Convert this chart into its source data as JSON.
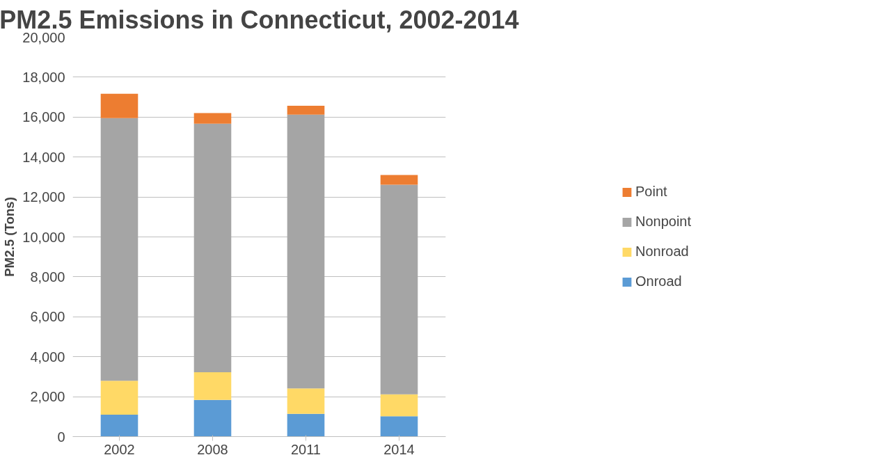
{
  "chart_data": {
    "type": "bar",
    "title": "PM2.5 Emissions in Connecticut, 2002-2014",
    "ylabel": "PM2.5 (Tons)",
    "categories": [
      "2002",
      "2008",
      "2011",
      "2014"
    ],
    "stacked": true,
    "series": [
      {
        "name": "Onroad",
        "color": "#5b9bd5",
        "values": [
          1100,
          1840,
          1140,
          1020
        ]
      },
      {
        "name": "Nonroad",
        "color": "#ffd966",
        "values": [
          1700,
          1380,
          1270,
          1100
        ]
      },
      {
        "name": "Nonpoint",
        "color": "#a5a5a5",
        "values": [
          13150,
          12450,
          13710,
          10490
        ]
      },
      {
        "name": "Point",
        "color": "#ed7d31",
        "values": [
          1220,
          530,
          450,
          490
        ]
      }
    ],
    "ylim": [
      0,
      20000
    ],
    "yticks": [
      {
        "value": 0,
        "label": "0"
      },
      {
        "value": 2000,
        "label": "2,000"
      },
      {
        "value": 4000,
        "label": "4,000"
      },
      {
        "value": 6000,
        "label": "6,000"
      },
      {
        "value": 8000,
        "label": "8,000"
      },
      {
        "value": 10000,
        "label": "10,000"
      },
      {
        "value": 12000,
        "label": "12,000"
      },
      {
        "value": 14000,
        "label": "14,000"
      },
      {
        "value": 16000,
        "label": "16,000"
      },
      {
        "value": 18000,
        "label": "18,000"
      },
      {
        "value": 20000,
        "label": "20,000"
      }
    ],
    "grid": "y",
    "legend": "right"
  }
}
